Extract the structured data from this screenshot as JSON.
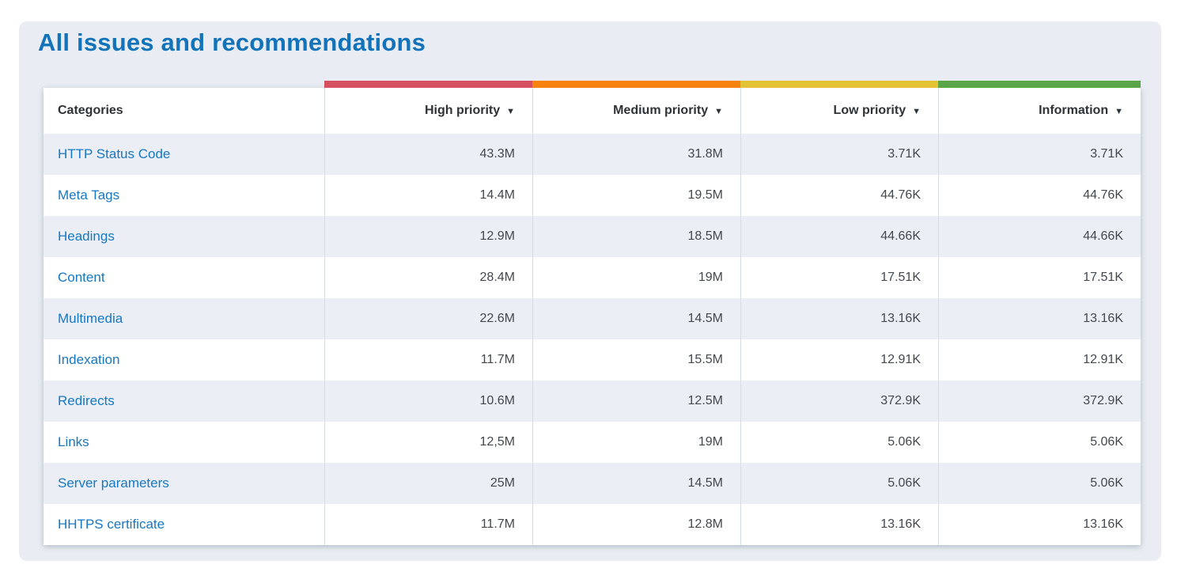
{
  "page": {
    "title": "All issues and recommendations"
  },
  "table": {
    "categories_header": "Categories",
    "sort_icon": "▼",
    "columns": [
      {
        "label": "High priority",
        "color": "#d5505e"
      },
      {
        "label": "Medium priority",
        "color": "#f8820e"
      },
      {
        "label": "Low priority",
        "color": "#e3c233"
      },
      {
        "label": "Information",
        "color": "#5ba549"
      }
    ],
    "rows": [
      {
        "category": "HTTP Status Code",
        "values": [
          "43.3M",
          "31.8M",
          "3.71K",
          "3.71K"
        ]
      },
      {
        "category": "Meta Tags",
        "values": [
          "14.4M",
          "19.5M",
          "44.76K",
          "44.76K"
        ]
      },
      {
        "category": "Headings",
        "values": [
          "12.9M",
          "18.5M",
          "44.66K",
          "44.66K"
        ]
      },
      {
        "category": "Content",
        "values": [
          "28.4M",
          "19M",
          "17.51K",
          "17.51K"
        ]
      },
      {
        "category": "Multimedia",
        "values": [
          "22.6M",
          "14.5M",
          "13.16K",
          "13.16K"
        ]
      },
      {
        "category": "Indexation",
        "values": [
          "11.7M",
          "15.5M",
          "12.91K",
          "12.91K"
        ]
      },
      {
        "category": "Redirects",
        "values": [
          "10.6M",
          "12.5M",
          "372.9K",
          "372.9K"
        ]
      },
      {
        "category": "Links",
        "values": [
          "12,5M",
          "19M",
          "5.06K",
          "5.06K"
        ]
      },
      {
        "category": "Server parameters",
        "values": [
          "25M",
          "14.5M",
          "5.06K",
          "5.06K"
        ]
      },
      {
        "category": "HHTPS certificate",
        "values": [
          "11.7M",
          "12.8M",
          "13.16K",
          "13.16K"
        ]
      }
    ]
  }
}
